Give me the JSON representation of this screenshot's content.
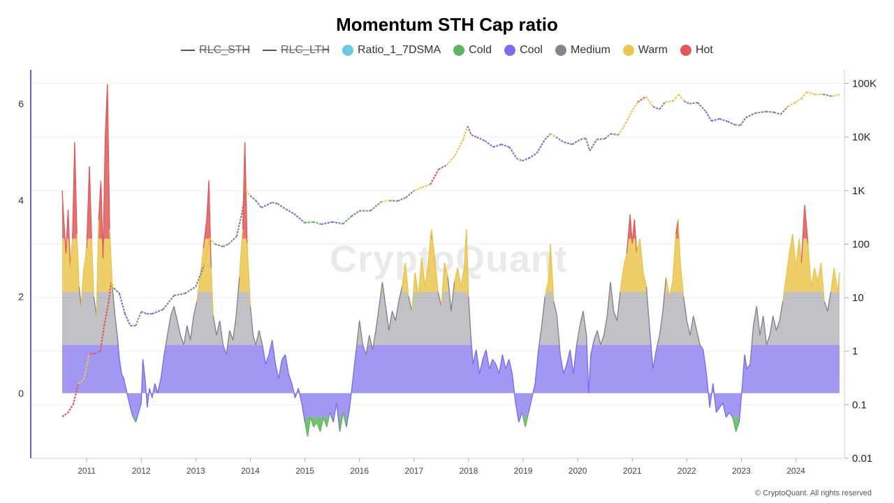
{
  "title": "Momentum STH Cap ratio",
  "legend": [
    {
      "label": "RLC_STH",
      "kind": "line",
      "color": "#555555",
      "hidden": true
    },
    {
      "label": "RLC_LTH",
      "kind": "line",
      "color": "#555555",
      "hidden": true
    },
    {
      "label": "Ratio_1_7DSMA",
      "kind": "dot",
      "color": "#6ec6e6",
      "hidden": false
    },
    {
      "label": "Cold",
      "kind": "dot",
      "color": "#5cb85c",
      "hidden": false
    },
    {
      "label": "Cool",
      "kind": "dot",
      "color": "#7b6cf0",
      "hidden": false
    },
    {
      "label": "Medium",
      "kind": "dot",
      "color": "#85838d",
      "hidden": false
    },
    {
      "label": "Warm",
      "kind": "dot",
      "color": "#eac54f",
      "hidden": false
    },
    {
      "label": "Hot",
      "kind": "dot",
      "color": "#e05a5a",
      "hidden": false
    }
  ],
  "watermark": "CryptoQuant",
  "copyright": "© CryptoQuant. All rights reserved",
  "chart_data": {
    "type": "area",
    "x_label_ticks": [
      "2011",
      "2012",
      "2013",
      "2014",
      "2015",
      "2016",
      "2017",
      "2018",
      "2019",
      "2020",
      "2021",
      "2022",
      "2023",
      "2024"
    ],
    "y_left": {
      "ticks": [
        0,
        2,
        4,
        6
      ],
      "range": [
        -1.35,
        6.7
      ]
    },
    "y_right": {
      "scale": "log",
      "ticks": [
        0.01,
        0.1,
        1,
        10,
        100,
        1000,
        10000,
        100000
      ],
      "tick_labels": [
        "0.01",
        "0.1",
        "1",
        "10",
        "100",
        "1K",
        "10K",
        "100K"
      ],
      "range": [
        0.01,
        180000
      ]
    },
    "x_range": [
      2010.0,
      2024.85
    ],
    "bands": {
      "cold": -0.5,
      "cool": 0,
      "medium": 1,
      "warm": 2.1,
      "hot": 3.2
    },
    "band_colors": {
      "cold": "#5cb85c",
      "cool": "#7b6cf0",
      "medium": "#85838d",
      "warm": "#eac54f",
      "hot": "#e05a5a"
    },
    "ratio_series": [
      [
        2010.55,
        4.2
      ],
      [
        2010.58,
        3.6
      ],
      [
        2010.62,
        2.9
      ],
      [
        2010.66,
        3.8
      ],
      [
        2010.7,
        2.6
      ],
      [
        2010.74,
        3.2
      ],
      [
        2010.78,
        5.2
      ],
      [
        2010.82,
        3.3
      ],
      [
        2010.86,
        2.2
      ],
      [
        2010.9,
        1.8
      ],
      [
        2010.94,
        2.5
      ],
      [
        2011.0,
        3.0
      ],
      [
        2011.05,
        4.7
      ],
      [
        2011.09,
        3.2
      ],
      [
        2011.13,
        2.0
      ],
      [
        2011.18,
        1.6
      ],
      [
        2011.22,
        3.6
      ],
      [
        2011.26,
        4.4
      ],
      [
        2011.3,
        2.8
      ],
      [
        2011.34,
        5.3
      ],
      [
        2011.38,
        6.4
      ],
      [
        2011.42,
        3.4
      ],
      [
        2011.47,
        2.2
      ],
      [
        2011.52,
        1.6
      ],
      [
        2011.56,
        1.2
      ],
      [
        2011.6,
        0.7
      ],
      [
        2011.64,
        0.4
      ],
      [
        2011.68,
        0.3
      ],
      [
        2011.72,
        0.1
      ],
      [
        2011.76,
        -0.1
      ],
      [
        2011.8,
        -0.3
      ],
      [
        2011.85,
        -0.5
      ],
      [
        2011.9,
        -0.6
      ],
      [
        2011.95,
        -0.4
      ],
      [
        2012.0,
        -0.2
      ],
      [
        2012.03,
        0.7
      ],
      [
        2012.07,
        0.3
      ],
      [
        2012.11,
        -0.3
      ],
      [
        2012.15,
        0.1
      ],
      [
        2012.2,
        -0.1
      ],
      [
        2012.25,
        0.2
      ],
      [
        2012.3,
        0.0
      ],
      [
        2012.36,
        0.3
      ],
      [
        2012.42,
        0.8
      ],
      [
        2012.48,
        1.2
      ],
      [
        2012.54,
        1.6
      ],
      [
        2012.6,
        1.8
      ],
      [
        2012.66,
        1.5
      ],
      [
        2012.72,
        1.2
      ],
      [
        2012.78,
        1.0
      ],
      [
        2012.84,
        1.4
      ],
      [
        2012.9,
        1.1
      ],
      [
        2012.96,
        1.6
      ],
      [
        2013.02,
        1.9
      ],
      [
        2013.08,
        2.4
      ],
      [
        2013.14,
        3.0
      ],
      [
        2013.2,
        3.6
      ],
      [
        2013.24,
        4.4
      ],
      [
        2013.28,
        2.6
      ],
      [
        2013.32,
        1.6
      ],
      [
        2013.38,
        1.2
      ],
      [
        2013.44,
        1.5
      ],
      [
        2013.5,
        1.0
      ],
      [
        2013.56,
        0.8
      ],
      [
        2013.62,
        1.3
      ],
      [
        2013.68,
        1.1
      ],
      [
        2013.74,
        1.6
      ],
      [
        2013.8,
        2.4
      ],
      [
        2013.86,
        3.4
      ],
      [
        2013.9,
        5.2
      ],
      [
        2013.94,
        3.1
      ],
      [
        2014.0,
        1.8
      ],
      [
        2014.05,
        1.2
      ],
      [
        2014.1,
        1.0
      ],
      [
        2014.16,
        1.3
      ],
      [
        2014.22,
        1.0
      ],
      [
        2014.28,
        0.6
      ],
      [
        2014.34,
        0.8
      ],
      [
        2014.4,
        1.1
      ],
      [
        2014.46,
        0.6
      ],
      [
        2014.52,
        0.3
      ],
      [
        2014.58,
        0.7
      ],
      [
        2014.64,
        0.8
      ],
      [
        2014.7,
        0.4
      ],
      [
        2014.76,
        0.2
      ],
      [
        2014.82,
        -0.1
      ],
      [
        2014.88,
        0.1
      ],
      [
        2014.94,
        -0.2
      ],
      [
        2015.0,
        -0.6
      ],
      [
        2015.05,
        -0.9
      ],
      [
        2015.1,
        -0.5
      ],
      [
        2015.16,
        -0.7
      ],
      [
        2015.22,
        -0.6
      ],
      [
        2015.28,
        -0.8
      ],
      [
        2015.34,
        -0.5
      ],
      [
        2015.4,
        -0.7
      ],
      [
        2015.46,
        -0.4
      ],
      [
        2015.52,
        -0.6
      ],
      [
        2015.58,
        -0.2
      ],
      [
        2015.64,
        -0.8
      ],
      [
        2015.7,
        -0.4
      ],
      [
        2015.76,
        -0.7
      ],
      [
        2015.82,
        -0.3
      ],
      [
        2015.88,
        0.3
      ],
      [
        2015.94,
        0.9
      ],
      [
        2016.0,
        1.5
      ],
      [
        2016.06,
        1.0
      ],
      [
        2016.12,
        0.8
      ],
      [
        2016.18,
        1.2
      ],
      [
        2016.24,
        0.9
      ],
      [
        2016.3,
        1.3
      ],
      [
        2016.36,
        1.8
      ],
      [
        2016.42,
        2.3
      ],
      [
        2016.48,
        1.8
      ],
      [
        2016.54,
        1.3
      ],
      [
        2016.6,
        1.7
      ],
      [
        2016.66,
        1.5
      ],
      [
        2016.72,
        1.9
      ],
      [
        2016.78,
        2.2
      ],
      [
        2016.84,
        2.7
      ],
      [
        2016.9,
        2.0
      ],
      [
        2016.96,
        1.7
      ],
      [
        2017.02,
        2.5
      ],
      [
        2017.08,
        2.0
      ],
      [
        2017.14,
        2.8
      ],
      [
        2017.2,
        2.2
      ],
      [
        2017.26,
        2.7
      ],
      [
        2017.32,
        3.4
      ],
      [
        2017.38,
        2.8
      ],
      [
        2017.44,
        2.1
      ],
      [
        2017.5,
        1.8
      ],
      [
        2017.56,
        2.7
      ],
      [
        2017.62,
        2.4
      ],
      [
        2017.68,
        1.7
      ],
      [
        2017.74,
        2.3
      ],
      [
        2017.8,
        2.6
      ],
      [
        2017.86,
        2.2
      ],
      [
        2017.92,
        2.6
      ],
      [
        2017.96,
        3.4
      ],
      [
        2018.0,
        2.0
      ],
      [
        2018.04,
        1.2
      ],
      [
        2018.08,
        0.6
      ],
      [
        2018.14,
        0.9
      ],
      [
        2018.2,
        0.4
      ],
      [
        2018.26,
        0.7
      ],
      [
        2018.32,
        0.9
      ],
      [
        2018.38,
        0.5
      ],
      [
        2018.44,
        0.7
      ],
      [
        2018.5,
        0.6
      ],
      [
        2018.56,
        0.4
      ],
      [
        2018.62,
        0.8
      ],
      [
        2018.68,
        0.5
      ],
      [
        2018.74,
        0.7
      ],
      [
        2018.8,
        0.4
      ],
      [
        2018.86,
        -0.2
      ],
      [
        2018.92,
        -0.6
      ],
      [
        2018.98,
        -0.4
      ],
      [
        2019.04,
        -0.7
      ],
      [
        2019.1,
        -0.4
      ],
      [
        2019.16,
        -0.1
      ],
      [
        2019.22,
        0.2
      ],
      [
        2019.28,
        0.9
      ],
      [
        2019.34,
        1.4
      ],
      [
        2019.4,
        2.0
      ],
      [
        2019.46,
        2.3
      ],
      [
        2019.5,
        3.1
      ],
      [
        2019.56,
        1.9
      ],
      [
        2019.62,
        1.6
      ],
      [
        2019.68,
        0.8
      ],
      [
        2019.74,
        0.4
      ],
      [
        2019.8,
        0.6
      ],
      [
        2019.86,
        0.9
      ],
      [
        2019.92,
        0.4
      ],
      [
        2019.98,
        1.0
      ],
      [
        2020.04,
        1.4
      ],
      [
        2020.1,
        1.7
      ],
      [
        2020.16,
        1.2
      ],
      [
        2020.2,
        0.0
      ],
      [
        2020.24,
        0.8
      ],
      [
        2020.3,
        1.1
      ],
      [
        2020.36,
        1.3
      ],
      [
        2020.42,
        1.0
      ],
      [
        2020.48,
        1.2
      ],
      [
        2020.54,
        1.6
      ],
      [
        2020.6,
        2.3
      ],
      [
        2020.66,
        1.7
      ],
      [
        2020.72,
        1.5
      ],
      [
        2020.78,
        2.1
      ],
      [
        2020.84,
        2.6
      ],
      [
        2020.9,
        2.9
      ],
      [
        2020.96,
        3.7
      ],
      [
        2021.0,
        3.1
      ],
      [
        2021.04,
        3.6
      ],
      [
        2021.08,
        2.9
      ],
      [
        2021.14,
        3.2
      ],
      [
        2021.2,
        2.5
      ],
      [
        2021.26,
        2.2
      ],
      [
        2021.32,
        1.3
      ],
      [
        2021.38,
        0.5
      ],
      [
        2021.44,
        0.9
      ],
      [
        2021.5,
        1.2
      ],
      [
        2021.56,
        1.7
      ],
      [
        2021.62,
        2.4
      ],
      [
        2021.68,
        2.0
      ],
      [
        2021.74,
        2.3
      ],
      [
        2021.8,
        3.3
      ],
      [
        2021.84,
        3.6
      ],
      [
        2021.88,
        2.7
      ],
      [
        2021.94,
        2.0
      ],
      [
        2022.0,
        1.5
      ],
      [
        2022.06,
        1.2
      ],
      [
        2022.12,
        1.6
      ],
      [
        2022.18,
        1.3
      ],
      [
        2022.24,
        1.0
      ],
      [
        2022.3,
        0.9
      ],
      [
        2022.36,
        0.4
      ],
      [
        2022.42,
        -0.3
      ],
      [
        2022.48,
        0.2
      ],
      [
        2022.54,
        -0.4
      ],
      [
        2022.6,
        -0.3
      ],
      [
        2022.66,
        -0.2
      ],
      [
        2022.72,
        -0.5
      ],
      [
        2022.78,
        -0.4
      ],
      [
        2022.84,
        -0.5
      ],
      [
        2022.9,
        -0.8
      ],
      [
        2022.96,
        -0.6
      ],
      [
        2023.02,
        0.2
      ],
      [
        2023.06,
        0.8
      ],
      [
        2023.1,
        0.5
      ],
      [
        2023.16,
        0.6
      ],
      [
        2023.22,
        1.4
      ],
      [
        2023.28,
        1.8
      ],
      [
        2023.34,
        1.2
      ],
      [
        2023.4,
        1.6
      ],
      [
        2023.46,
        1.0
      ],
      [
        2023.52,
        1.2
      ],
      [
        2023.58,
        1.6
      ],
      [
        2023.64,
        1.3
      ],
      [
        2023.7,
        1.5
      ],
      [
        2023.76,
        1.9
      ],
      [
        2023.82,
        2.4
      ],
      [
        2023.88,
        2.9
      ],
      [
        2023.94,
        3.3
      ],
      [
        2024.0,
        2.6
      ],
      [
        2024.06,
        3.2
      ],
      [
        2024.1,
        2.7
      ],
      [
        2024.16,
        3.9
      ],
      [
        2024.22,
        3.1
      ],
      [
        2024.28,
        2.2
      ],
      [
        2024.34,
        2.6
      ],
      [
        2024.4,
        2.3
      ],
      [
        2024.46,
        2.7
      ],
      [
        2024.52,
        1.9
      ],
      [
        2024.58,
        1.7
      ],
      [
        2024.64,
        2.1
      ],
      [
        2024.7,
        2.6
      ],
      [
        2024.76,
        2.1
      ],
      [
        2024.8,
        2.5
      ]
    ],
    "price_series": [
      [
        2010.55,
        0.06
      ],
      [
        2010.65,
        0.07
      ],
      [
        2010.75,
        0.1
      ],
      [
        2010.85,
        0.25
      ],
      [
        2010.95,
        0.3
      ],
      [
        2011.05,
        0.9
      ],
      [
        2011.15,
        0.9
      ],
      [
        2011.25,
        1.0
      ],
      [
        2011.32,
        3.0
      ],
      [
        2011.4,
        8.0
      ],
      [
        2011.45,
        20
      ],
      [
        2011.5,
        15
      ],
      [
        2011.6,
        12
      ],
      [
        2011.7,
        5
      ],
      [
        2011.8,
        3
      ],
      [
        2011.9,
        3.0
      ],
      [
        2012.0,
        5.5
      ],
      [
        2012.1,
        5.0
      ],
      [
        2012.2,
        5.0
      ],
      [
        2012.4,
        6.0
      ],
      [
        2012.6,
        11
      ],
      [
        2012.8,
        12
      ],
      [
        2013.0,
        16
      ],
      [
        2013.15,
        40
      ],
      [
        2013.25,
        130
      ],
      [
        2013.35,
        100
      ],
      [
        2013.5,
        90
      ],
      [
        2013.6,
        100
      ],
      [
        2013.75,
        140
      ],
      [
        2013.85,
        400
      ],
      [
        2013.92,
        1000
      ],
      [
        2014.0,
        800
      ],
      [
        2014.1,
        650
      ],
      [
        2014.2,
        480
      ],
      [
        2014.4,
        600
      ],
      [
        2014.5,
        570
      ],
      [
        2014.65,
        450
      ],
      [
        2014.8,
        370
      ],
      [
        2015.0,
        250
      ],
      [
        2015.15,
        260
      ],
      [
        2015.3,
        235
      ],
      [
        2015.5,
        260
      ],
      [
        2015.7,
        240
      ],
      [
        2015.85,
        330
      ],
      [
        2016.0,
        420
      ],
      [
        2016.2,
        420
      ],
      [
        2016.4,
        620
      ],
      [
        2016.55,
        650
      ],
      [
        2016.7,
        640
      ],
      [
        2016.85,
        740
      ],
      [
        2017.0,
        1000
      ],
      [
        2017.15,
        1150
      ],
      [
        2017.3,
        1300
      ],
      [
        2017.45,
        2500
      ],
      [
        2017.6,
        3000
      ],
      [
        2017.75,
        4500
      ],
      [
        2017.9,
        9000
      ],
      [
        2017.98,
        16000
      ],
      [
        2018.05,
        11000
      ],
      [
        2018.15,
        10000
      ],
      [
        2018.3,
        8500
      ],
      [
        2018.45,
        6500
      ],
      [
        2018.6,
        7300
      ],
      [
        2018.75,
        6500
      ],
      [
        2018.88,
        4000
      ],
      [
        2018.98,
        3600
      ],
      [
        2019.1,
        4000
      ],
      [
        2019.25,
        5000
      ],
      [
        2019.4,
        9000
      ],
      [
        2019.5,
        11500
      ],
      [
        2019.6,
        10000
      ],
      [
        2019.75,
        8000
      ],
      [
        2019.9,
        7300
      ],
      [
        2020.05,
        9000
      ],
      [
        2020.15,
        9500
      ],
      [
        2020.22,
        5500
      ],
      [
        2020.35,
        9000
      ],
      [
        2020.5,
        9300
      ],
      [
        2020.6,
        11500
      ],
      [
        2020.75,
        11000
      ],
      [
        2020.88,
        18000
      ],
      [
        2020.98,
        29000
      ],
      [
        2021.1,
        45000
      ],
      [
        2021.25,
        57000
      ],
      [
        2021.38,
        37000
      ],
      [
        2021.5,
        33000
      ],
      [
        2021.6,
        45000
      ],
      [
        2021.75,
        47000
      ],
      [
        2021.85,
        63000
      ],
      [
        2021.95,
        47000
      ],
      [
        2022.05,
        42000
      ],
      [
        2022.2,
        44000
      ],
      [
        2022.35,
        30000
      ],
      [
        2022.45,
        20000
      ],
      [
        2022.6,
        22000
      ],
      [
        2022.75,
        19500
      ],
      [
        2022.88,
        17000
      ],
      [
        2022.98,
        16500
      ],
      [
        2023.08,
        23000
      ],
      [
        2023.25,
        28000
      ],
      [
        2023.45,
        30000
      ],
      [
        2023.6,
        29000
      ],
      [
        2023.72,
        26500
      ],
      [
        2023.85,
        37000
      ],
      [
        2023.98,
        44000
      ],
      [
        2024.1,
        52000
      ],
      [
        2024.2,
        70000
      ],
      [
        2024.35,
        62000
      ],
      [
        2024.5,
        63000
      ],
      [
        2024.65,
        58000
      ],
      [
        2024.8,
        62000
      ]
    ]
  }
}
